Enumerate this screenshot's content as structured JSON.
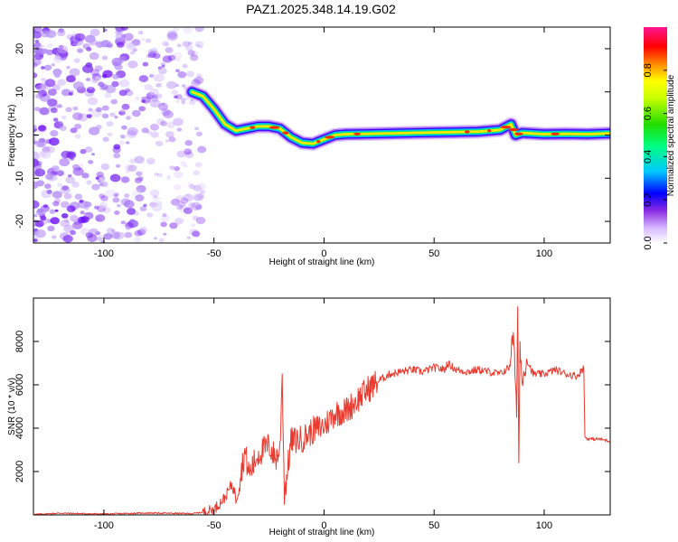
{
  "title": "PAZ1.2025.348.14.19.G02",
  "colors": {
    "snr_line": "#e83a2e",
    "noise": "#7a2cf0",
    "frame": "#000000"
  },
  "chart_data": [
    {
      "type": "heatmap",
      "name": "spectrogram",
      "xlabel": "Height of straight line (km)",
      "ylabel": "Frequency (Hz)",
      "xlim": [
        -132,
        130
      ],
      "ylim": [
        -25,
        25
      ],
      "xticks": [
        -100,
        -50,
        0,
        50,
        100
      ],
      "yticks": [
        -20,
        -10,
        0,
        10,
        20
      ],
      "noise_region_km": [
        -132,
        -55
      ],
      "colorbar": {
        "label": "Normalized spectral amplitude",
        "range": [
          0,
          1
        ],
        "ticks": [
          0.0,
          0.2,
          0.4,
          0.6,
          0.8
        ],
        "tick_labels": [
          "0.0",
          "0.2",
          "0.4",
          "0.6",
          "0.8"
        ]
      },
      "ridge": {
        "x": [
          -60,
          -55,
          -50,
          -45,
          -40,
          -35,
          -30,
          -25,
          -20,
          -15,
          -10,
          -5,
          0,
          5,
          10,
          20,
          30,
          40,
          50,
          60,
          70,
          80,
          85,
          87,
          90,
          100,
          110,
          120,
          130
        ],
        "y": [
          10,
          9,
          6,
          2.5,
          1,
          1.5,
          2,
          2,
          1.5,
          -0.5,
          -1.8,
          -2,
          -1,
          0,
          0.2,
          0.3,
          0.4,
          0.5,
          0.6,
          0.7,
          0.8,
          1.2,
          2.5,
          0,
          0.5,
          0.2,
          0.3,
          0.2,
          0.4
        ]
      }
    },
    {
      "type": "line",
      "name": "snr",
      "xlabel": "Height of straight line (km)",
      "ylabel": "SNR (10 * v/v)",
      "xlim": [
        -132,
        130
      ],
      "ylim": [
        0,
        10000
      ],
      "xticks": [
        -100,
        -50,
        0,
        50,
        100
      ],
      "yticks": [
        2000,
        4000,
        6000,
        8000
      ],
      "series": [
        {
          "name": "SNR",
          "x": [
            -132,
            -120,
            -100,
            -80,
            -60,
            -55,
            -50,
            -45,
            -42,
            -40,
            -38,
            -36,
            -34,
            -30,
            -25,
            -22,
            -20,
            -19,
            -18,
            -15,
            -10,
            -5,
            0,
            5,
            10,
            15,
            20,
            25,
            30,
            35,
            40,
            45,
            50,
            55,
            56,
            60,
            65,
            70,
            75,
            80,
            84,
            86,
            87,
            87.5,
            88,
            88.5,
            89,
            90,
            92,
            95,
            100,
            105,
            110,
            115,
            118,
            118.5,
            120,
            125,
            130
          ],
          "y": [
            20,
            80,
            40,
            90,
            60,
            120,
            250,
            800,
            1400,
            900,
            1800,
            2900,
            1900,
            2800,
            3200,
            2600,
            3000,
            6500,
            900,
            3400,
            3500,
            3900,
            4100,
            4700,
            4800,
            5300,
            5800,
            6200,
            6500,
            6600,
            6700,
            6600,
            6800,
            6700,
            7000,
            6700,
            6600,
            6700,
            6600,
            6500,
            6800,
            8300,
            6000,
            4500,
            9600,
            2400,
            8000,
            6000,
            7200,
            6500,
            6500,
            6700,
            6500,
            6400,
            6800,
            3600,
            3500,
            3500,
            3400
          ]
        }
      ]
    }
  ]
}
